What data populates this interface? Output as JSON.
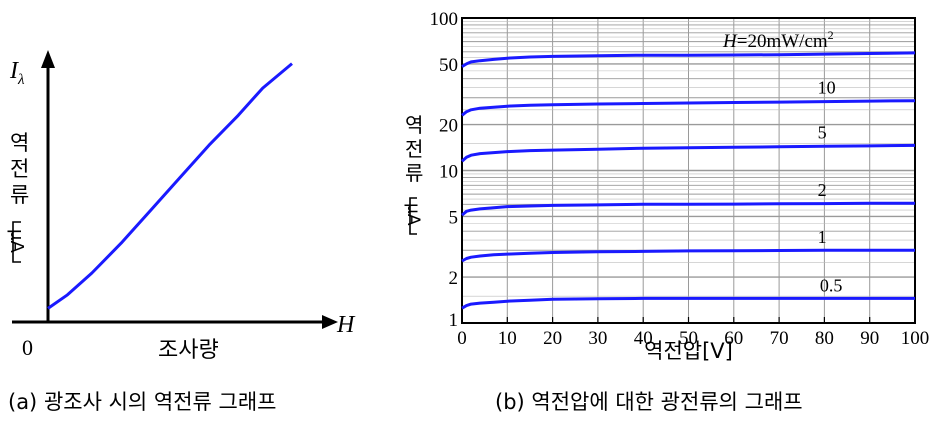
{
  "chart_data": [
    {
      "type": "line",
      "panel_label": "(a)",
      "caption": "광조사 시의 역전류 그래프",
      "xlabel": "조사량",
      "x_axis_symbol": "H",
      "ylabel_symbol": "I",
      "ylabel_symbol_subscript": "λ",
      "ylabel_chars": [
        "역",
        "전",
        "류"
      ],
      "ylabel_unit": "μA",
      "origin_label": "0",
      "grid": false,
      "axis_ticks": "none",
      "series": [
        {
          "x": [
            0.0,
            0.08,
            0.18,
            0.3,
            0.42,
            0.54,
            0.66,
            0.78,
            0.88,
            1.0
          ],
          "y": [
            0.05,
            0.1,
            0.18,
            0.29,
            0.41,
            0.53,
            0.65,
            0.76,
            0.86,
            0.95
          ]
        }
      ],
      "color": "#1a1aff"
    },
    {
      "type": "line",
      "panel_label": "(b)",
      "caption": "역전압에 대한 광전류의 그래프",
      "xlabel": "역전압[V]",
      "ylabel_chars": [
        "역",
        "전",
        "류"
      ],
      "ylabel_unit": "μA",
      "x_ticks": [
        "0",
        "10",
        "20",
        "30",
        "40",
        "50",
        "60",
        "70",
        "80",
        "90",
        "100"
      ],
      "xlim": [
        0,
        100
      ],
      "y_scale": "log",
      "ylim": [
        1,
        100
      ],
      "y_ticks": [
        "1",
        "2",
        "5",
        "10",
        "20",
        "50",
        "100"
      ],
      "grid": true,
      "legend_prefix": "H",
      "legend_rest": "=20mW/cm",
      "legend_sup": "2",
      "x": [
        0,
        1,
        2,
        4,
        7,
        10,
        15,
        20,
        30,
        40,
        50,
        60,
        70,
        80,
        90,
        100
      ],
      "series": [
        {
          "label": "",
          "y": [
            48,
            50,
            51.5,
            52.5,
            53.5,
            54.5,
            55.5,
            56,
            56.5,
            57,
            57,
            57.2,
            57.5,
            58,
            58.5,
            59
          ]
        },
        {
          "label": "10",
          "y": [
            23,
            24.3,
            25,
            25.6,
            26,
            26.4,
            26.8,
            27,
            27.3,
            27.5,
            27.7,
            27.9,
            28.1,
            28.3,
            28.5,
            28.7
          ]
        },
        {
          "label": "5",
          "y": [
            11.5,
            12.2,
            12.6,
            12.9,
            13.1,
            13.3,
            13.5,
            13.6,
            13.8,
            14,
            14.1,
            14.2,
            14.3,
            14.4,
            14.5,
            14.6
          ]
        },
        {
          "label": "2",
          "y": [
            5.1,
            5.4,
            5.5,
            5.6,
            5.7,
            5.8,
            5.85,
            5.9,
            5.95,
            6,
            6,
            6.02,
            6.05,
            6.07,
            6.1,
            6.1
          ]
        },
        {
          "label": "1",
          "y": [
            2.55,
            2.65,
            2.7,
            2.75,
            2.8,
            2.83,
            2.87,
            2.9,
            2.93,
            2.95,
            2.97,
            2.98,
            2.99,
            3,
            3,
            3
          ]
        },
        {
          "label": "0.5",
          "y": [
            1.25,
            1.3,
            1.33,
            1.35,
            1.37,
            1.39,
            1.41,
            1.43,
            1.44,
            1.45,
            1.45,
            1.45,
            1.45,
            1.45,
            1.45,
            1.45
          ]
        }
      ],
      "color": "#1a1aff"
    }
  ]
}
